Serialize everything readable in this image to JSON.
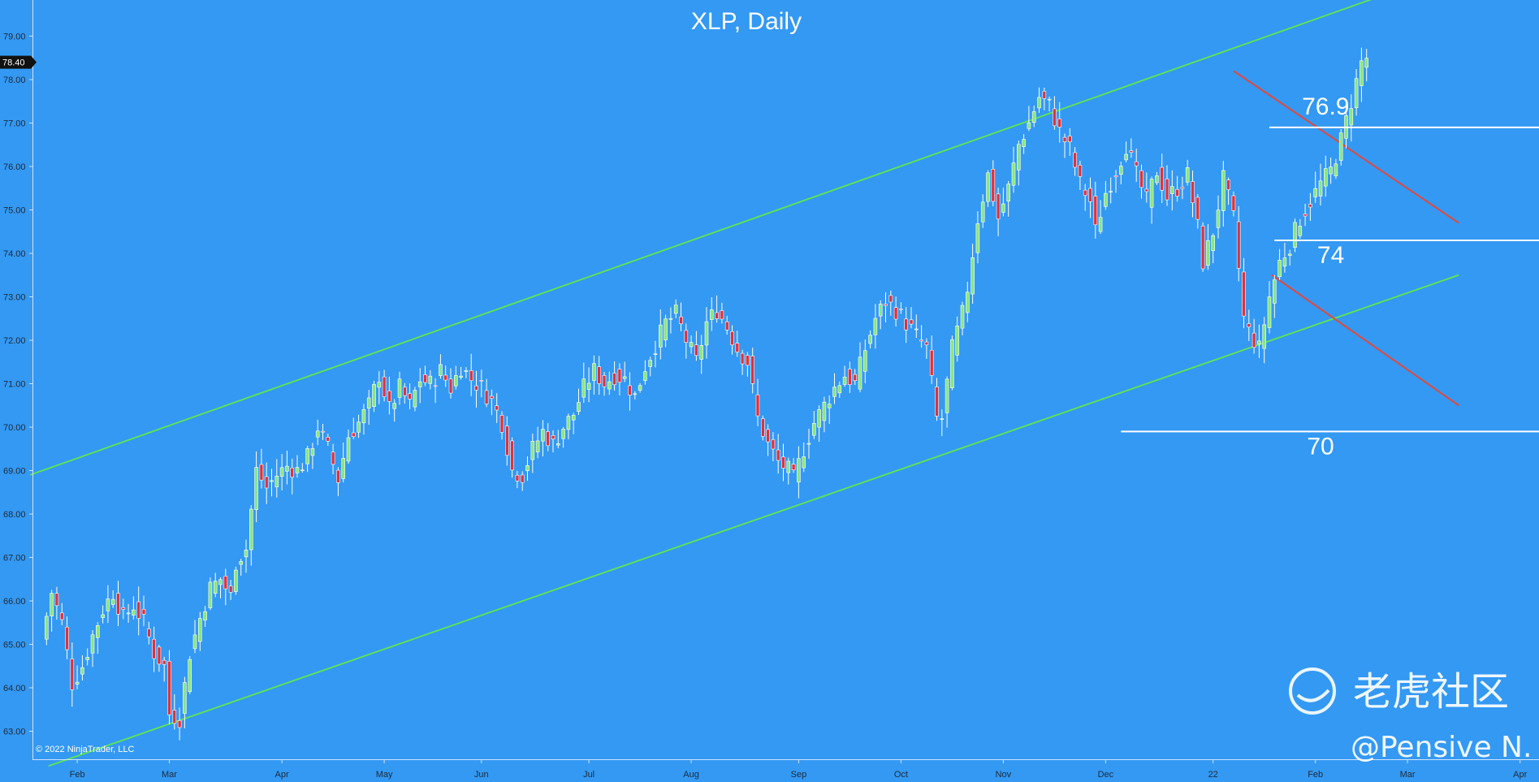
{
  "chart_data": {
    "type": "candlestick",
    "title": "XLP, Daily",
    "ylim": [
      62.0,
      80.0
    ],
    "yticks": [
      "79.00",
      "78.00",
      "77.00",
      "76.00",
      "75.00",
      "74.00",
      "73.00",
      "72.00",
      "71.00",
      "70.00",
      "69.00",
      "68.00",
      "67.00",
      "66.00",
      "65.00",
      "64.00",
      "63.00"
    ],
    "current_price": "78.40",
    "x_labels": [
      {
        "label": "Feb",
        "index": 7
      },
      {
        "label": "Mar",
        "index": 25
      },
      {
        "label": "Apr",
        "index": 47
      },
      {
        "label": "May",
        "index": 67
      },
      {
        "label": "Jun",
        "index": 86
      },
      {
        "label": "Jul",
        "index": 107
      },
      {
        "label": "Aug",
        "index": 127
      },
      {
        "label": "Sep",
        "index": 148
      },
      {
        "label": "Oct",
        "index": 168
      },
      {
        "label": "Nov",
        "index": 188
      },
      {
        "label": "Dec",
        "index": 208
      },
      {
        "label": "22",
        "index": 229
      },
      {
        "label": "Feb",
        "index": 249
      },
      {
        "label": "Mar",
        "index": 267
      },
      {
        "label": "Apr",
        "index": 289
      }
    ],
    "anchors": [
      [
        0,
        65.1
      ],
      [
        2,
        66.2
      ],
      [
        4,
        65.5
      ],
      [
        6,
        64.1
      ],
      [
        8,
        64.5
      ],
      [
        10,
        65.2
      ],
      [
        12,
        65.8
      ],
      [
        14,
        66.2
      ],
      [
        16,
        65.6
      ],
      [
        18,
        65.9
      ],
      [
        20,
        65.5
      ],
      [
        22,
        64.8
      ],
      [
        24,
        64.5
      ],
      [
        25,
        63.4
      ],
      [
        27,
        63.3
      ],
      [
        29,
        64.8
      ],
      [
        31,
        65.6
      ],
      [
        33,
        66.3
      ],
      [
        35,
        66.5
      ],
      [
        37,
        66.1
      ],
      [
        38,
        66.9
      ],
      [
        40,
        67.2
      ],
      [
        42,
        69.0
      ],
      [
        44,
        68.6
      ],
      [
        46,
        68.9
      ],
      [
        48,
        69.1
      ],
      [
        50,
        69.0
      ],
      [
        52,
        69.3
      ],
      [
        54,
        70.0
      ],
      [
        56,
        69.5
      ],
      [
        58,
        68.8
      ],
      [
        60,
        69.8
      ],
      [
        62,
        70.1
      ],
      [
        64,
        70.5
      ],
      [
        66,
        71.2
      ],
      [
        68,
        70.4
      ],
      [
        70,
        70.9
      ],
      [
        72,
        70.5
      ],
      [
        74,
        71.1
      ],
      [
        76,
        71.0
      ],
      [
        78,
        71.3
      ],
      [
        80,
        70.9
      ],
      [
        82,
        71.4
      ],
      [
        84,
        71.1
      ],
      [
        86,
        70.9
      ],
      [
        88,
        70.6
      ],
      [
        90,
        70.1
      ],
      [
        92,
        69.0
      ],
      [
        94,
        68.9
      ],
      [
        96,
        69.5
      ],
      [
        98,
        69.9
      ],
      [
        100,
        69.6
      ],
      [
        102,
        70.0
      ],
      [
        104,
        70.3
      ],
      [
        106,
        70.9
      ],
      [
        108,
        71.3
      ],
      [
        110,
        71.0
      ],
      [
        112,
        71.2
      ],
      [
        114,
        71.1
      ],
      [
        116,
        70.7
      ],
      [
        118,
        71.4
      ],
      [
        120,
        71.9
      ],
      [
        122,
        72.4
      ],
      [
        124,
        72.6
      ],
      [
        126,
        72.0
      ],
      [
        128,
        71.5
      ],
      [
        130,
        72.4
      ],
      [
        132,
        72.7
      ],
      [
        134,
        72.3
      ],
      [
        136,
        71.8
      ],
      [
        138,
        71.5
      ],
      [
        140,
        70.2
      ],
      [
        142,
        69.6
      ],
      [
        144,
        69.2
      ],
      [
        146,
        69.0
      ],
      [
        147,
        68.8
      ],
      [
        149,
        69.5
      ],
      [
        151,
        70.1
      ],
      [
        153,
        70.5
      ],
      [
        155,
        70.9
      ],
      [
        157,
        71.2
      ],
      [
        159,
        71.0
      ],
      [
        161,
        71.8
      ],
      [
        163,
        72.5
      ],
      [
        165,
        72.9
      ],
      [
        167,
        72.7
      ],
      [
        169,
        72.4
      ],
      [
        171,
        72.1
      ],
      [
        173,
        71.8
      ],
      [
        175,
        70.2
      ],
      [
        176,
        70.2
      ],
      [
        178,
        71.8
      ],
      [
        180,
        72.6
      ],
      [
        181,
        73.2
      ],
      [
        183,
        74.8
      ],
      [
        185,
        75.8
      ],
      [
        187,
        74.8
      ],
      [
        189,
        75.5
      ],
      [
        191,
        76.5
      ],
      [
        193,
        77.0
      ],
      [
        195,
        77.6
      ],
      [
        197,
        77.4
      ],
      [
        199,
        76.8
      ],
      [
        201,
        76.4
      ],
      [
        203,
        75.6
      ],
      [
        205,
        75.2
      ],
      [
        206,
        74.5
      ],
      [
        208,
        75.4
      ],
      [
        210,
        75.9
      ],
      [
        212,
        76.5
      ],
      [
        214,
        75.8
      ],
      [
        216,
        75.2
      ],
      [
        218,
        75.9
      ],
      [
        220,
        75.3
      ],
      [
        222,
        75.5
      ],
      [
        224,
        75.8
      ],
      [
        226,
        74.6
      ],
      [
        227,
        73.8
      ],
      [
        229,
        74.5
      ],
      [
        231,
        75.7
      ],
      [
        233,
        74.8
      ],
      [
        235,
        72.5
      ],
      [
        236,
        72.2
      ],
      [
        238,
        71.8
      ],
      [
        240,
        73.0
      ],
      [
        242,
        73.8
      ],
      [
        244,
        74.2
      ],
      [
        246,
        74.8
      ],
      [
        248,
        75.2
      ],
      [
        250,
        75.6
      ],
      [
        252,
        75.9
      ],
      [
        254,
        76.6
      ],
      [
        256,
        77.5
      ],
      [
        258,
        78.4
      ],
      [
        259,
        78.5
      ]
    ],
    "channels": [
      {
        "name": "",
        "color": "#5fe05a",
        "points": [
          [
            -2.2,
            68.9
          ],
          [
            266.0,
            80.1
          ]
        ]
      },
      {
        "name": "",
        "color": "#5fe05a",
        "points": [
          [
            1.4,
            62.2
          ],
          [
            277.0,
            73.5
          ]
        ]
      }
    ],
    "red_lines": [
      {
        "color": "#e5483a",
        "points": [
          [
            233.0,
            78.2
          ],
          [
            277.0,
            74.7
          ]
        ]
      },
      {
        "color": "#e5483a",
        "points": [
          [
            240.5,
            73.5
          ],
          [
            277.0,
            70.5
          ]
        ]
      }
    ],
    "levels": [
      {
        "label": "76.9",
        "value": 76.9,
        "from_index": 240,
        "text_index": 251
      },
      {
        "label": "74",
        "value": 74.3,
        "from_index": 241,
        "text_index": 252
      },
      {
        "label": "70",
        "value": 69.9,
        "from_index": 211,
        "text_index": 250
      }
    ],
    "copyright": "© 2022 NinjaTrader, LLC",
    "watermark": "老虎社区",
    "handle": "@Pensive N."
  }
}
